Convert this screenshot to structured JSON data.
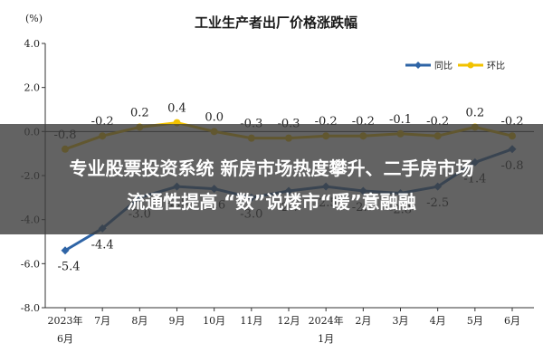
{
  "chart_data": {
    "type": "line",
    "title": "工业生产者出厂价格涨跌幅",
    "unit_label": "(%)",
    "ylim": [
      -8.0,
      4.0
    ],
    "yticks": [
      "4.0",
      "2.0",
      "0.0",
      "-2.0",
      "-4.0",
      "-6.0",
      "-8.0"
    ],
    "categories": [
      [
        "2023年",
        "6月"
      ],
      [
        "7月"
      ],
      [
        "8月"
      ],
      [
        "9月"
      ],
      [
        "10月"
      ],
      [
        "11月"
      ],
      [
        "12月"
      ],
      [
        "2024年",
        "1月"
      ],
      [
        "2月"
      ],
      [
        "3月"
      ],
      [
        "4月"
      ],
      [
        "5月"
      ],
      [
        "6月"
      ]
    ],
    "legend_position": "top-right",
    "grid": false,
    "series": [
      {
        "name": "同比",
        "color": "#2e64a6",
        "values": [
          -5.4,
          -4.4,
          -3.0,
          -2.5,
          -2.6,
          -3.0,
          -2.7,
          -2.5,
          -2.7,
          -2.8,
          -2.5,
          -1.4,
          -0.8
        ],
        "labels": [
          "-5.4",
          "-4.4",
          "-3.0",
          "-2.5",
          "-2.6",
          "-3.0",
          "-2.7",
          "-2.5",
          "-2.7",
          "-2.8",
          "-2.5",
          "-1.4",
          "-0.8"
        ]
      },
      {
        "name": "环比",
        "color": "#f2c200",
        "values": [
          -0.8,
          -0.2,
          0.2,
          0.4,
          0.0,
          -0.3,
          -0.3,
          -0.2,
          -0.2,
          -0.1,
          -0.2,
          0.2,
          -0.2
        ],
        "labels": [
          "-0.8",
          "-0.2",
          "0.2",
          "0.4",
          "0.0",
          "-0.3",
          "-0.3",
          "-0.2",
          "-0.2",
          "-0.1",
          "-0.2",
          "0.2",
          "-0.2"
        ]
      }
    ]
  },
  "banner": {
    "line1": "专业股票投资系统 新房市场热度攀升、二手房市场",
    "line2": "流通性提高 “数”说楼市“暖”意融融"
  }
}
